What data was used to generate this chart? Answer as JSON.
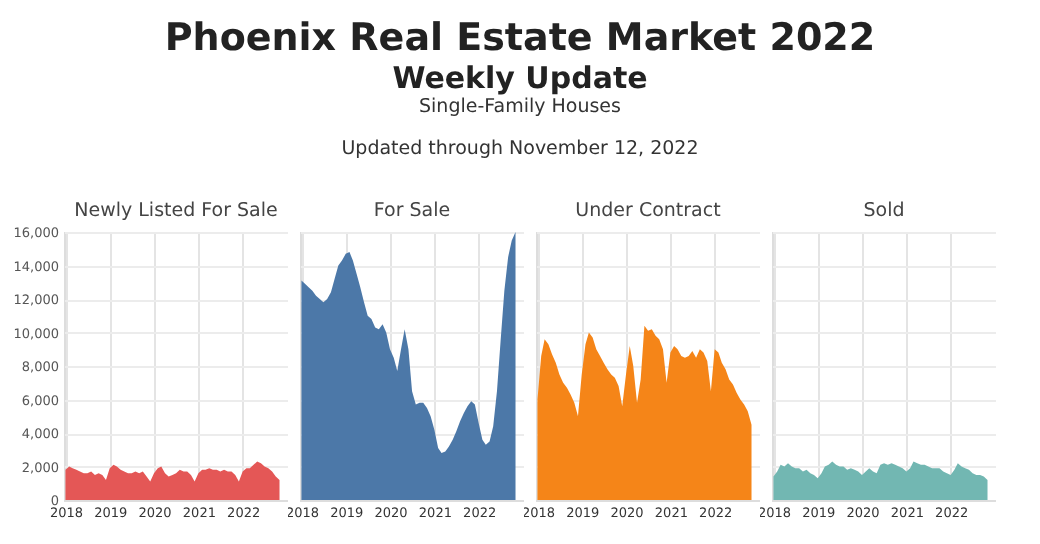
{
  "chart_data": [
    {
      "type": "other",
      "title": "Phoenix Real Estate Market 2022",
      "subtitle": "Weekly Update",
      "annotations": [
        "Single-Family Houses",
        "Updated through November 12, 2022"
      ]
    },
    {
      "type": "area",
      "title": "Newly Listed For Sale",
      "x": [
        "2018-01",
        "2018-02",
        "2018-03",
        "2018-04",
        "2018-05",
        "2018-06",
        "2018-07",
        "2018-08",
        "2018-09",
        "2018-10",
        "2018-11",
        "2018-12",
        "2019-01",
        "2019-02",
        "2019-03",
        "2019-04",
        "2019-05",
        "2019-06",
        "2019-07",
        "2019-08",
        "2019-09",
        "2019-10",
        "2019-11",
        "2019-12",
        "2020-01",
        "2020-02",
        "2020-03",
        "2020-04",
        "2020-05",
        "2020-06",
        "2020-07",
        "2020-08",
        "2020-09",
        "2020-10",
        "2020-11",
        "2020-12",
        "2021-01",
        "2021-02",
        "2021-03",
        "2021-04",
        "2021-05",
        "2021-06",
        "2021-07",
        "2021-08",
        "2021-09",
        "2021-10",
        "2021-11",
        "2021-12",
        "2022-01",
        "2022-02",
        "2022-03",
        "2022-04",
        "2022-05",
        "2022-06",
        "2022-07",
        "2022-08",
        "2022-09",
        "2022-10",
        "2022-11"
      ],
      "series": [
        {
          "color": "#e45756",
          "values": [
            1800,
            2000,
            1900,
            1800,
            1700,
            1600,
            1600,
            1700,
            1500,
            1600,
            1500,
            1200,
            1900,
            2100,
            2000,
            1800,
            1700,
            1600,
            1600,
            1700,
            1600,
            1700,
            1400,
            1100,
            1600,
            1900,
            2000,
            1600,
            1400,
            1500,
            1600,
            1800,
            1700,
            1700,
            1500,
            1100,
            1600,
            1800,
            1800,
            1900,
            1800,
            1800,
            1700,
            1800,
            1700,
            1700,
            1500,
            1100,
            1700,
            1900,
            1900,
            2100,
            2300,
            2200,
            2000,
            1900,
            1700,
            1400,
            1200
          ]
        }
      ],
      "xlim": [
        "2017-12-20",
        "2023-01-10"
      ],
      "xticks": [
        "2018",
        "2019",
        "2020",
        "2021",
        "2022"
      ],
      "ylim": [
        0,
        16000
      ],
      "yticks": [
        0,
        {
          "value": 2000,
          "label": "2,000"
        },
        {
          "value": 4000,
          "label": "4,000"
        },
        {
          "value": 6000,
          "label": "6,000"
        },
        {
          "value": 8000,
          "label": "8,000"
        },
        {
          "value": 10000,
          "label": "10,000"
        },
        {
          "value": 12000,
          "label": "12,000"
        },
        {
          "value": 14000,
          "label": "14,000"
        },
        {
          "value": 16000,
          "label": "16,000"
        }
      ],
      "grid": true
    },
    {
      "type": "area",
      "title": "For Sale",
      "x": [
        "2018-01",
        "2018-02",
        "2018-03",
        "2018-04",
        "2018-05",
        "2018-06",
        "2018-07",
        "2018-08",
        "2018-09",
        "2018-10",
        "2018-11",
        "2018-12",
        "2019-01",
        "2019-02",
        "2019-03",
        "2019-04",
        "2019-05",
        "2019-06",
        "2019-07",
        "2019-08",
        "2019-09",
        "2019-10",
        "2019-11",
        "2019-12",
        "2020-01",
        "2020-02",
        "2020-03",
        "2020-04",
        "2020-05",
        "2020-06",
        "2020-07",
        "2020-08",
        "2020-09",
        "2020-10",
        "2020-11",
        "2020-12",
        "2021-01",
        "2021-02",
        "2021-03",
        "2021-04",
        "2021-05",
        "2021-06",
        "2021-07",
        "2021-08",
        "2021-09",
        "2021-10",
        "2021-11",
        "2021-12",
        "2022-01",
        "2022-02",
        "2022-03",
        "2022-04",
        "2022-05",
        "2022-06",
        "2022-07",
        "2022-08",
        "2022-09",
        "2022-10",
        "2022-11"
      ],
      "series": [
        {
          "color": "#4c78a8",
          "values": [
            13100,
            12900,
            12700,
            12500,
            12200,
            12000,
            11800,
            12000,
            12400,
            13200,
            14000,
            14300,
            14700,
            14800,
            14300,
            13500,
            12700,
            11800,
            11000,
            10800,
            10300,
            10200,
            10500,
            10000,
            9000,
            8500,
            7700,
            9000,
            10200,
            9000,
            6500,
            5700,
            5800,
            5800,
            5500,
            5000,
            4200,
            3100,
            2800,
            2900,
            3200,
            3600,
            4100,
            4700,
            5200,
            5600,
            5900,
            5700,
            4600,
            3600,
            3300,
            3500,
            4400,
            6500,
            9500,
            12500,
            14500,
            15500,
            16000
          ]
        }
      ],
      "xlim": [
        "2017-12-20",
        "2023-01-10"
      ],
      "xticks": [
        "2018",
        "2019",
        "2020",
        "2021",
        "2022"
      ],
      "ylim": [
        0,
        16000
      ],
      "yticks": [
        {
          "value": 0,
          "label": null
        },
        {
          "value": 2000,
          "label": null
        },
        {
          "value": 4000,
          "label": null
        },
        {
          "value": 6000,
          "label": null
        },
        {
          "value": 8000,
          "label": null
        },
        {
          "value": 10000,
          "label": null
        },
        {
          "value": 12000,
          "label": null
        },
        {
          "value": 14000,
          "label": null
        },
        {
          "value": 16000,
          "label": null
        }
      ],
      "grid": true,
      "tick_labels": "x"
    },
    {
      "type": "area",
      "title": "Under Contract",
      "x": [
        "2018-01",
        "2018-02",
        "2018-03",
        "2018-04",
        "2018-05",
        "2018-06",
        "2018-07",
        "2018-08",
        "2018-09",
        "2018-10",
        "2018-11",
        "2018-12",
        "2019-01",
        "2019-02",
        "2019-03",
        "2019-04",
        "2019-05",
        "2019-06",
        "2019-07",
        "2019-08",
        "2019-09",
        "2019-10",
        "2019-11",
        "2019-12",
        "2020-01",
        "2020-02",
        "2020-03",
        "2020-04",
        "2020-05",
        "2020-06",
        "2020-07",
        "2020-08",
        "2020-09",
        "2020-10",
        "2020-11",
        "2020-12",
        "2021-01",
        "2021-02",
        "2021-03",
        "2021-04",
        "2021-05",
        "2021-06",
        "2021-07",
        "2021-08",
        "2021-09",
        "2021-10",
        "2021-11",
        "2021-12",
        "2022-01",
        "2022-02",
        "2022-03",
        "2022-04",
        "2022-05",
        "2022-06",
        "2022-07",
        "2022-08",
        "2022-09",
        "2022-10",
        "2022-11"
      ],
      "series": [
        {
          "color": "#f58518",
          "values": [
            6000,
            8600,
            9600,
            9300,
            8700,
            8200,
            7500,
            7000,
            6700,
            6300,
            5800,
            5000,
            7500,
            9300,
            10000,
            9700,
            9000,
            8600,
            8200,
            7800,
            7500,
            7300,
            6800,
            5600,
            7500,
            9200,
            8000,
            5800,
            7200,
            10400,
            10100,
            10200,
            9800,
            9600,
            9000,
            7000,
            8800,
            9200,
            9000,
            8600,
            8500,
            8600,
            8900,
            8500,
            9000,
            8800,
            8300,
            6500,
            9000,
            8800,
            8200,
            7800,
            7200,
            6900,
            6400,
            6000,
            5700,
            5300,
            4500
          ]
        }
      ],
      "xlim": [
        "2017-12-20",
        "2023-01-10"
      ],
      "xticks": [
        "2018",
        "2019",
        "2020",
        "2021",
        "2022"
      ],
      "ylim": [
        0,
        16000
      ],
      "yticks": [
        {
          "value": 0,
          "label": null
        },
        {
          "value": 2000,
          "label": null
        },
        {
          "value": 4000,
          "label": null
        },
        {
          "value": 6000,
          "label": null
        },
        {
          "value": 8000,
          "label": null
        },
        {
          "value": 10000,
          "label": null
        },
        {
          "value": 12000,
          "label": null
        },
        {
          "value": 14000,
          "label": null
        },
        {
          "value": 16000,
          "label": null
        }
      ],
      "grid": true,
      "tick_labels": "x"
    },
    {
      "type": "area",
      "title": "Sold",
      "x": [
        "2018-01",
        "2018-02",
        "2018-03",
        "2018-04",
        "2018-05",
        "2018-06",
        "2018-07",
        "2018-08",
        "2018-09",
        "2018-10",
        "2018-11",
        "2018-12",
        "2019-01",
        "2019-02",
        "2019-03",
        "2019-04",
        "2019-05",
        "2019-06",
        "2019-07",
        "2019-08",
        "2019-09",
        "2019-10",
        "2019-11",
        "2019-12",
        "2020-01",
        "2020-02",
        "2020-03",
        "2020-04",
        "2020-05",
        "2020-06",
        "2020-07",
        "2020-08",
        "2020-09",
        "2020-10",
        "2020-11",
        "2020-12",
        "2021-01",
        "2021-02",
        "2021-03",
        "2021-04",
        "2021-05",
        "2021-06",
        "2021-07",
        "2021-08",
        "2021-09",
        "2021-10",
        "2021-11",
        "2021-12",
        "2022-01",
        "2022-02",
        "2022-03",
        "2022-04",
        "2022-05",
        "2022-06",
        "2022-07",
        "2022-08",
        "2022-09",
        "2022-10",
        "2022-11"
      ],
      "series": [
        {
          "color": "#72b7b2",
          "values": [
            1400,
            1700,
            2100,
            2000,
            2200,
            2000,
            1900,
            1900,
            1700,
            1800,
            1600,
            1500,
            1300,
            1600,
            2000,
            2100,
            2300,
            2100,
            2000,
            2000,
            1800,
            1900,
            1800,
            1700,
            1500,
            1700,
            1900,
            1700,
            1600,
            2100,
            2200,
            2100,
            2200,
            2100,
            2000,
            1900,
            1700,
            1900,
            2300,
            2200,
            2100,
            2100,
            2000,
            1900,
            1900,
            1900,
            1700,
            1600,
            1500,
            1800,
            2200,
            2000,
            1900,
            1800,
            1600,
            1500,
            1500,
            1400,
            1200
          ]
        }
      ],
      "xlim": [
        "2017-12-20",
        "2023-01-10"
      ],
      "xticks": [
        "2018",
        "2019",
        "2020",
        "2021",
        "2022"
      ],
      "ylim": [
        0,
        16000
      ],
      "yticks": [
        {
          "value": 0,
          "label": null
        },
        {
          "value": 2000,
          "label": null
        },
        {
          "value": 4000,
          "label": null
        },
        {
          "value": 6000,
          "label": null
        },
        {
          "value": 8000,
          "label": null
        },
        {
          "value": 10000,
          "label": null
        },
        {
          "value": 12000,
          "label": null
        },
        {
          "value": 14000,
          "label": null
        },
        {
          "value": 16000,
          "label": null
        }
      ],
      "grid": true,
      "tick_labels": "x"
    }
  ]
}
